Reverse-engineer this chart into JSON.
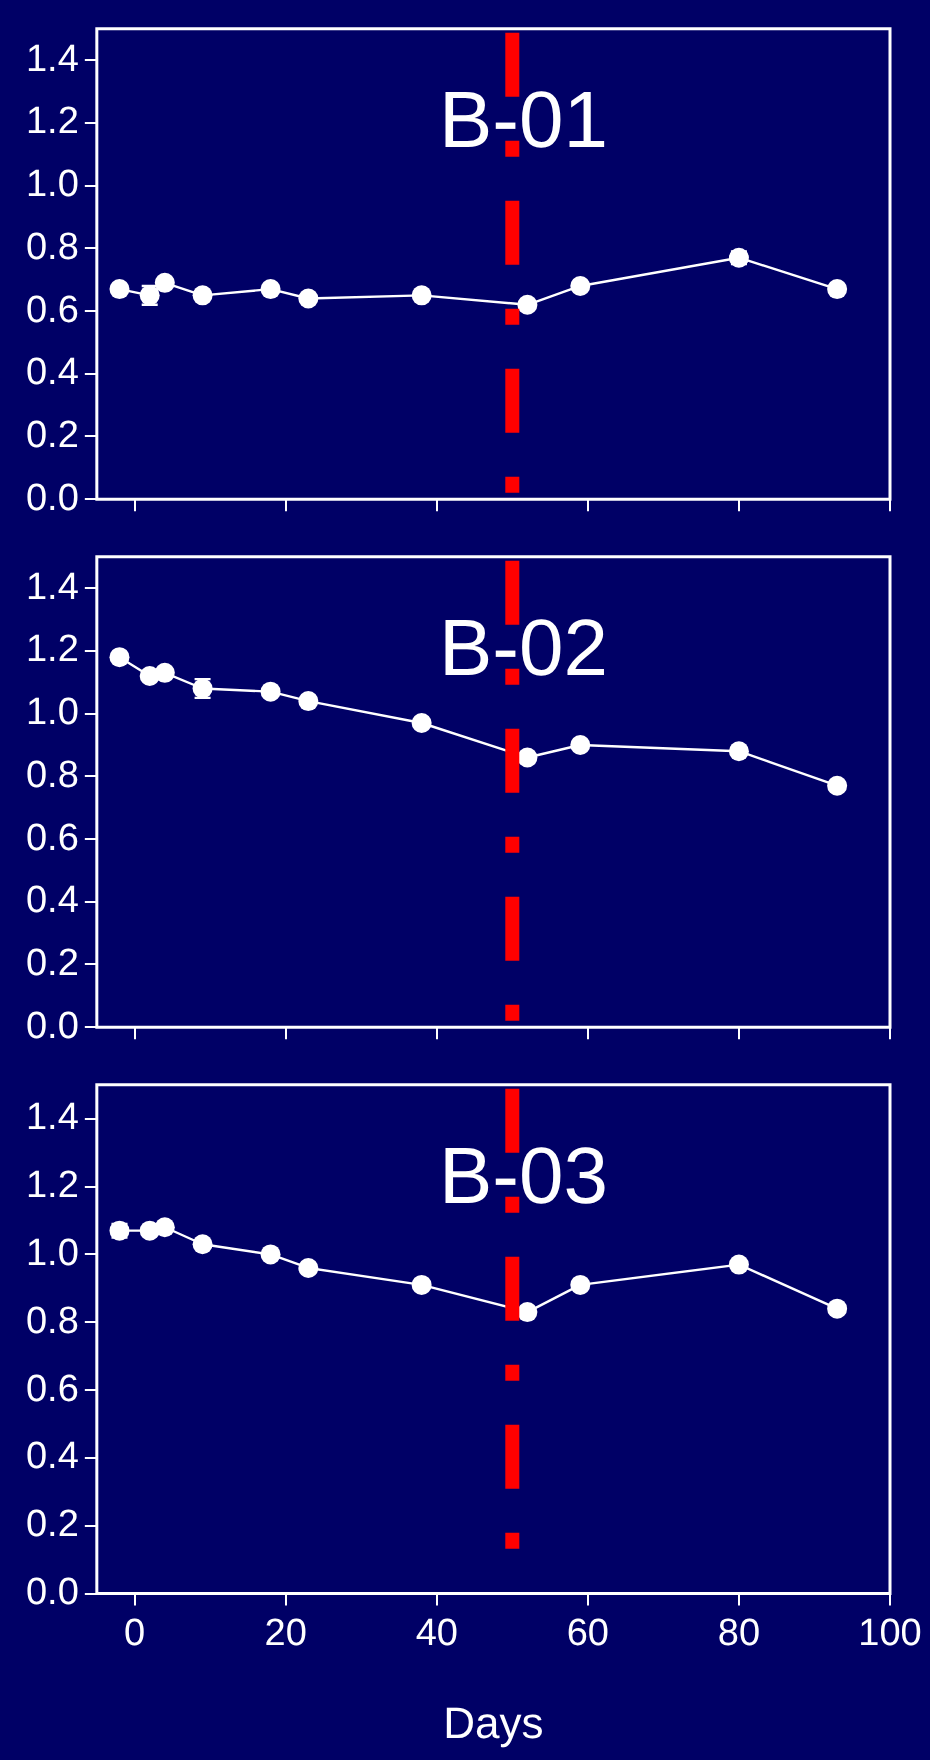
{
  "chart_data": [
    {
      "type": "line",
      "title": "B-01",
      "x": [
        -2,
        2,
        4,
        9,
        18,
        23,
        38,
        52,
        59,
        80,
        93
      ],
      "series": [
        {
          "color": "#ffffff",
          "values": [
            0.67,
            0.65,
            0.69,
            0.65,
            0.67,
            0.64,
            0.65,
            0.62,
            0.68,
            0.77,
            0.67
          ],
          "errors": [
            null,
            0.03,
            null,
            null,
            null,
            null,
            null,
            null,
            null,
            0.02,
            null
          ]
        }
      ],
      "xlim": [
        -5,
        100
      ],
      "xticks": [
        0,
        20,
        40,
        60,
        80,
        100
      ],
      "ylim": [
        0,
        1.5
      ],
      "yticks": [
        {
          "value": 0,
          "label": "0.0"
        },
        {
          "value": 0.2,
          "label": "0.2"
        },
        {
          "value": 0.4,
          "label": "0.4"
        },
        {
          "value": 0.6,
          "label": "0.6"
        },
        {
          "value": 0.8,
          "label": "0.8"
        },
        {
          "value": 1,
          "label": "1.0"
        },
        {
          "value": 1.2,
          "label": "1.2"
        },
        {
          "value": 1.4,
          "label": "1.4"
        }
      ],
      "tick_labels": "y",
      "marker": "circle",
      "ref_lines": [
        {
          "axis": "x",
          "value": 50,
          "color": "#ff0000",
          "line_style": "dashed"
        }
      ]
    },
    {
      "type": "line",
      "title": "B-02",
      "x": [
        -2,
        2,
        4,
        9,
        18,
        23,
        38,
        52,
        59,
        80,
        93
      ],
      "series": [
        {
          "color": "#ffffff",
          "values": [
            1.18,
            1.12,
            1.13,
            1.08,
            1.07,
            1.04,
            0.97,
            0.86,
            0.9,
            0.88,
            0.77
          ],
          "errors": [
            null,
            null,
            null,
            0.03,
            null,
            null,
            null,
            null,
            null,
            null,
            null
          ]
        }
      ],
      "xlim": [
        -5,
        100
      ],
      "xticks": [
        0,
        20,
        40,
        60,
        80,
        100
      ],
      "ylim": [
        0,
        1.5
      ],
      "yticks": [
        {
          "value": 0,
          "label": "0.0"
        },
        {
          "value": 0.2,
          "label": "0.2"
        },
        {
          "value": 0.4,
          "label": "0.4"
        },
        {
          "value": 0.6,
          "label": "0.6"
        },
        {
          "value": 0.8,
          "label": "0.8"
        },
        {
          "value": 1,
          "label": "1.0"
        },
        {
          "value": 1.2,
          "label": "1.2"
        },
        {
          "value": 1.4,
          "label": "1.4"
        }
      ],
      "tick_labels": "y",
      "marker": "circle",
      "ref_lines": [
        {
          "axis": "x",
          "value": 50,
          "color": "#ff0000",
          "line_style": "dashed"
        }
      ]
    },
    {
      "type": "line",
      "title": "B-03",
      "xlabel": "Days",
      "x": [
        -2,
        2,
        4,
        9,
        18,
        23,
        38,
        52,
        59,
        80,
        93
      ],
      "series": [
        {
          "color": "#ffffff",
          "values": [
            1.07,
            1.07,
            1.08,
            1.03,
            1.0,
            0.96,
            0.91,
            0.83,
            0.91,
            0.97,
            0.84
          ],
          "errors": [
            0.02,
            null,
            null,
            null,
            null,
            null,
            null,
            null,
            null,
            null,
            null
          ]
        }
      ],
      "xlim": [
        -5,
        100
      ],
      "xticks": [
        0,
        20,
        40,
        60,
        80,
        100
      ],
      "ylim": [
        0,
        1.5
      ],
      "yticks": [
        {
          "value": 0,
          "label": "0.0"
        },
        {
          "value": 0.2,
          "label": "0.2"
        },
        {
          "value": 0.4,
          "label": "0.4"
        },
        {
          "value": 0.6,
          "label": "0.6"
        },
        {
          "value": 0.8,
          "label": "0.8"
        },
        {
          "value": 1,
          "label": "1.0"
        },
        {
          "value": 1.2,
          "label": "1.2"
        },
        {
          "value": 1.4,
          "label": "1.4"
        }
      ],
      "marker": "circle",
      "ref_lines": [
        {
          "axis": "x",
          "value": 50,
          "color": "#ff0000",
          "line_style": "dashed"
        }
      ]
    }
  ]
}
